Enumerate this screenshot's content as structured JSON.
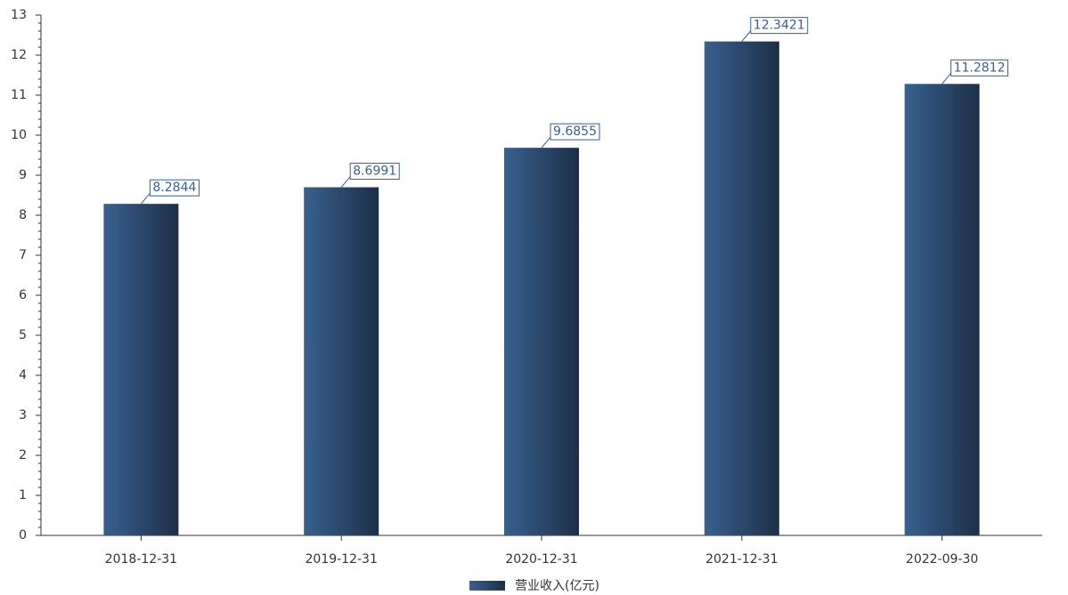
{
  "chart_data": {
    "type": "bar",
    "categories": [
      "2018-12-31",
      "2019-12-31",
      "2020-12-31",
      "2021-12-31",
      "2022-09-30"
    ],
    "series": [
      {
        "name": "营业收入(亿元)",
        "color": "#38608f",
        "values": [
          8.2844,
          8.6991,
          9.6855,
          12.3421,
          11.2812
        ]
      }
    ],
    "ylim": [
      0,
      13
    ],
    "yticks": [
      0,
      1,
      2,
      3,
      4,
      5,
      6,
      7,
      8,
      9,
      10,
      11,
      12,
      13
    ],
    "grid": false
  }
}
